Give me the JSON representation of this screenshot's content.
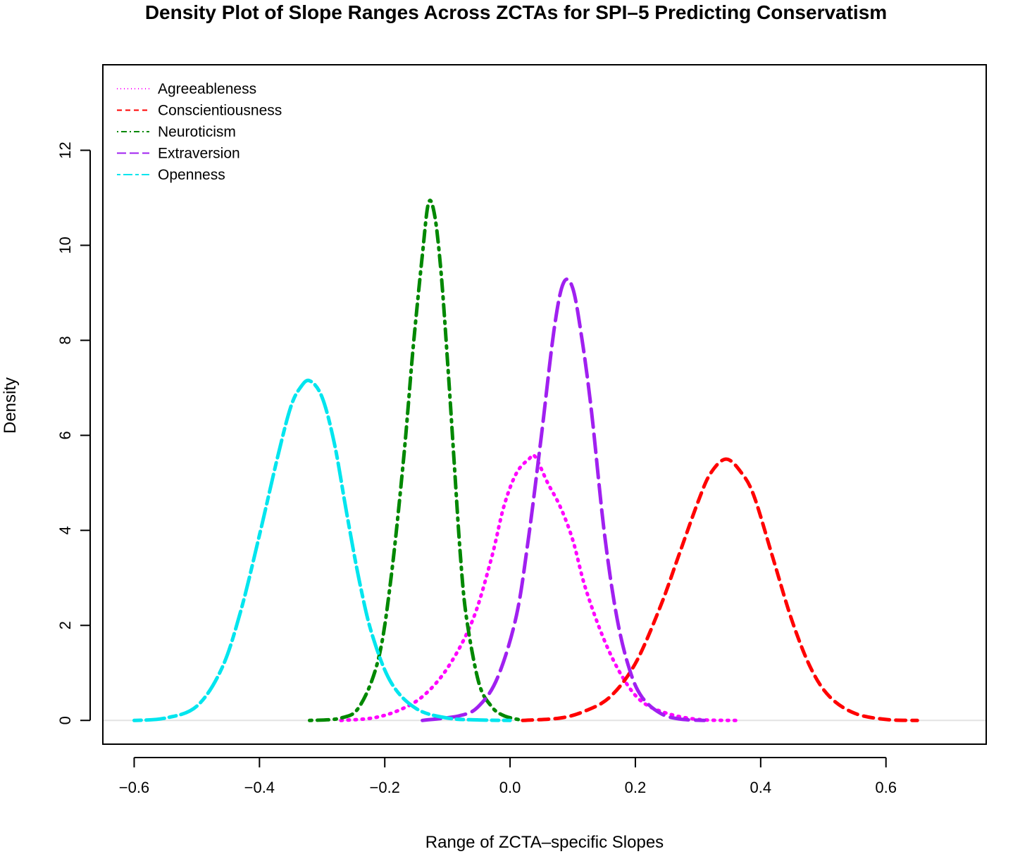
{
  "chart_data": {
    "type": "line",
    "title": "Density Plot of Slope Ranges Across ZCTAs for SPI–5 Predicting Conservatism",
    "xlabel": "Range of ZCTA–specific Slopes",
    "ylabel": "Density",
    "xlim": [
      -0.65,
      0.76
    ],
    "ylim": [
      -0.5,
      13.8
    ],
    "xticks": [
      -0.6,
      -0.4,
      -0.2,
      0.0,
      0.2,
      0.4,
      0.6
    ],
    "xtick_labels": [
      "−0.6",
      "−0.4",
      "−0.2",
      "0.0",
      "0.2",
      "0.4",
      "0.6"
    ],
    "yticks": [
      0,
      2,
      4,
      6,
      8,
      10,
      12
    ],
    "ytick_labels": [
      "0",
      "2",
      "4",
      "6",
      "8",
      "10",
      "12"
    ],
    "grid": false,
    "legend_position": "top-left",
    "zero_line": true,
    "series": [
      {
        "name": "Agreeableness",
        "color": "#ff00ff",
        "linestyle": "dotted",
        "x": [
          -0.27,
          -0.22,
          -0.18,
          -0.14,
          -0.1,
          -0.06,
          -0.03,
          -0.01,
          0.01,
          0.03,
          0.04,
          0.06,
          0.08,
          0.1,
          0.12,
          0.15,
          0.18,
          0.21,
          0.25,
          0.3,
          0.36
        ],
        "y": [
          0.0,
          0.05,
          0.2,
          0.5,
          1.1,
          2.1,
          3.4,
          4.5,
          5.2,
          5.5,
          5.55,
          5.0,
          4.5,
          3.8,
          2.8,
          1.7,
          0.9,
          0.4,
          0.15,
          0.02,
          0.0
        ]
      },
      {
        "name": "Conscientiousness",
        "color": "#ff0000",
        "linestyle": "dashed",
        "x": [
          0.02,
          0.08,
          0.12,
          0.16,
          0.2,
          0.24,
          0.27,
          0.3,
          0.32,
          0.345,
          0.37,
          0.39,
          0.42,
          0.45,
          0.48,
          0.51,
          0.55,
          0.6,
          0.65
        ],
        "y": [
          0.0,
          0.05,
          0.2,
          0.5,
          1.2,
          2.4,
          3.5,
          4.6,
          5.2,
          5.5,
          5.2,
          4.7,
          3.4,
          2.1,
          1.1,
          0.5,
          0.15,
          0.02,
          0.0
        ]
      },
      {
        "name": "Neuroticism",
        "color": "#008800",
        "linestyle": "dotdash",
        "x": [
          -0.32,
          -0.27,
          -0.24,
          -0.21,
          -0.19,
          -0.17,
          -0.155,
          -0.14,
          -0.13,
          -0.12,
          -0.11,
          -0.1,
          -0.09,
          -0.08,
          -0.07,
          -0.05,
          -0.03,
          -0.01,
          0.02
        ],
        "y": [
          0.0,
          0.05,
          0.3,
          1.3,
          3.0,
          5.5,
          7.8,
          9.8,
          10.9,
          10.6,
          9.4,
          7.6,
          5.6,
          3.6,
          2.2,
          0.8,
          0.3,
          0.1,
          0.0
        ]
      },
      {
        "name": "Extraversion",
        "color": "#a020f0",
        "linestyle": "longdash",
        "x": [
          -0.14,
          -0.08,
          -0.05,
          -0.02,
          0.01,
          0.03,
          0.05,
          0.07,
          0.085,
          0.1,
          0.115,
          0.13,
          0.15,
          0.17,
          0.19,
          0.21,
          0.24,
          0.27,
          0.31
        ],
        "y": [
          0.0,
          0.1,
          0.3,
          0.9,
          2.2,
          3.9,
          6.0,
          8.2,
          9.2,
          9.1,
          8.0,
          6.5,
          4.0,
          2.2,
          1.1,
          0.5,
          0.15,
          0.03,
          0.0
        ]
      },
      {
        "name": "Openness",
        "color": "#00e5ee",
        "linestyle": "twodash",
        "x": [
          -0.6,
          -0.55,
          -0.5,
          -0.46,
          -0.43,
          -0.4,
          -0.37,
          -0.35,
          -0.335,
          -0.32,
          -0.3,
          -0.28,
          -0.26,
          -0.24,
          -0.22,
          -0.19,
          -0.15,
          -0.1,
          -0.05,
          0.0
        ],
        "y": [
          0.0,
          0.05,
          0.3,
          1.1,
          2.3,
          3.9,
          5.6,
          6.6,
          7.0,
          7.15,
          6.8,
          5.8,
          4.3,
          2.9,
          1.8,
          0.8,
          0.25,
          0.05,
          0.01,
          0.0
        ]
      }
    ]
  }
}
